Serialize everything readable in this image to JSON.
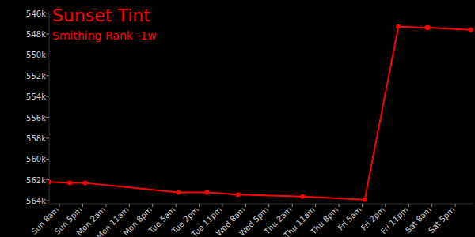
{
  "chart_data": {
    "type": "line",
    "title": "Sunset Tint",
    "subtitle": "Smithing Rank -1w",
    "color": "#ff0000",
    "marker": "circle",
    "grid": false,
    "x": [
      -4,
      4,
      10,
      46,
      57,
      69,
      94,
      118,
      131,
      142,
      142.5,
      159
    ],
    "values": [
      562200,
      562300,
      562300,
      563200,
      563200,
      563400,
      563600,
      563900,
      547300,
      547400,
      547400,
      547600
    ],
    "xlim": [
      -4,
      160
    ],
    "xticks": [
      {
        "value": 0,
        "label": "Sun 8am"
      },
      {
        "value": 9,
        "label": "Sun 5pm"
      },
      {
        "value": 18,
        "label": "Mon 2am"
      },
      {
        "value": 27,
        "label": "Mon 11am"
      },
      {
        "value": 36,
        "label": "Mon 8pm"
      },
      {
        "value": 45,
        "label": "Tue 5am"
      },
      {
        "value": 54,
        "label": "Tue 2pm"
      },
      {
        "value": 63,
        "label": "Tue 11pm"
      },
      {
        "value": 72,
        "label": "Wed 8am"
      },
      {
        "value": 81,
        "label": "Wed 5pm"
      },
      {
        "value": 90,
        "label": "Thu 2am"
      },
      {
        "value": 99,
        "label": "Thu 11am"
      },
      {
        "value": 108,
        "label": "Thu 8pm"
      },
      {
        "value": 117,
        "label": "Fri 5am"
      },
      {
        "value": 126,
        "label": "Fri 2pm"
      },
      {
        "value": 135,
        "label": "Fri 11pm"
      },
      {
        "value": 144,
        "label": "Sat 8am"
      },
      {
        "value": 153,
        "label": "Sat 5pm"
      }
    ],
    "ylim": [
      564300,
      545800
    ],
    "yticks": [
      {
        "value": 546000,
        "label": "546k"
      },
      {
        "value": 548000,
        "label": "548k"
      },
      {
        "value": 550000,
        "label": "550k"
      },
      {
        "value": 552000,
        "label": "552k"
      },
      {
        "value": 554000,
        "label": "554k"
      },
      {
        "value": 556000,
        "label": "556k"
      },
      {
        "value": 558000,
        "label": "558k"
      },
      {
        "value": 560000,
        "label": "560k"
      },
      {
        "value": 562000,
        "label": "562k"
      },
      {
        "value": 564000,
        "label": "564k"
      }
    ]
  }
}
